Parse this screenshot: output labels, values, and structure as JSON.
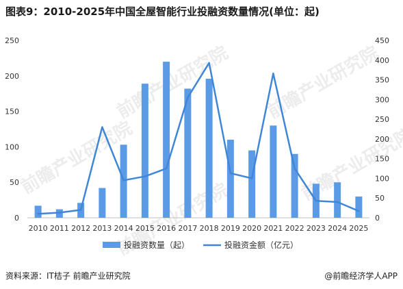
{
  "title": "图表9：2010-2025年中国全屋智能行业投融资数量情况(单位：起)",
  "watermark": "前瞻产业研究院",
  "source": "资料来源：IT桔子 前瞻产业研究院",
  "credit": "@前瞻经济学人APP",
  "chart_data": {
    "type": "bar",
    "categories": [
      "2010",
      "2011",
      "2012",
      "2013",
      "2014",
      "2015",
      "2016",
      "2017",
      "2018",
      "2019",
      "2020",
      "2021",
      "2022",
      "2023",
      "2024",
      "2025"
    ],
    "series": [
      {
        "name": "投融资数量（起）",
        "type": "bar",
        "axis": "left",
        "color": "#5B9BE6",
        "values": [
          17,
          12,
          21,
          42,
          103,
          189,
          220,
          182,
          196,
          110,
          95,
          130,
          90,
          48,
          50,
          30
        ]
      },
      {
        "name": "投融资金额（亿元）",
        "type": "line",
        "axis": "right",
        "color": "#3F86D8",
        "values": [
          10,
          13,
          20,
          230,
          95,
          105,
          125,
          305,
          393,
          113,
          100,
          366,
          125,
          43,
          40,
          17
        ]
      }
    ],
    "yleft": {
      "min": 0,
      "max": 250,
      "ticks": [
        0,
        50,
        100,
        150,
        200,
        250
      ]
    },
    "yright": {
      "min": 0,
      "max": 450,
      "ticks": [
        0,
        50,
        100,
        150,
        200,
        250,
        300,
        350,
        400,
        450
      ]
    },
    "grid": false,
    "legend_position": "bottom"
  }
}
